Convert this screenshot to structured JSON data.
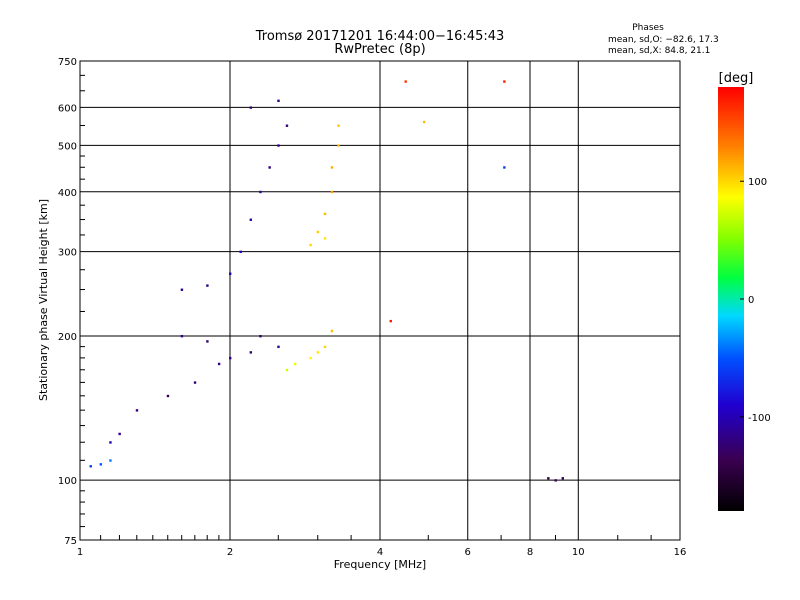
{
  "header": {
    "title_line1": "Tromsø 20171201 16:44:00−16:45:43",
    "title_line2": "RwPretec (8p)"
  },
  "stats": {
    "heading": "Phases",
    "line_o": "mean, sd,O: −82.6, 17.3",
    "line_x": "mean, sd,X:  84.8, 21.1"
  },
  "chart_data": {
    "type": "scatter",
    "xlabel": "Frequency [MHz]",
    "ylabel": "Stationary phase Virtual Height [km]",
    "x_scale": "log",
    "y_scale": "log",
    "xlim": [
      1,
      16
    ],
    "ylim": [
      75,
      750
    ],
    "x_ticks": [
      1,
      2,
      4,
      6,
      8,
      10,
      16
    ],
    "y_ticks": [
      75,
      100,
      200,
      300,
      400,
      500,
      600,
      750
    ],
    "grid": true,
    "colorbar": {
      "label": "[deg]",
      "range": [
        -180,
        180
      ],
      "ticks": [
        100,
        0,
        -100
      ],
      "colormap": "black-violet-blue-cyan-green-yellow-red"
    },
    "clusters": [
      {
        "name": "o-low-edge",
        "points": [
          [
            1.05,
            107,
            -60
          ],
          [
            1.1,
            108,
            -50
          ],
          [
            1.15,
            110,
            -40
          ],
          [
            1.2,
            125,
            -110
          ],
          [
            1.15,
            120,
            -100
          ]
        ]
      },
      {
        "name": "o-lower-trace",
        "points": [
          [
            1.3,
            140,
            -120
          ],
          [
            1.5,
            150,
            -130
          ],
          [
            1.7,
            160,
            -125
          ],
          [
            1.9,
            175,
            -120
          ],
          [
            2.0,
            180,
            -115
          ],
          [
            2.2,
            185,
            -120
          ],
          [
            2.5,
            190,
            -110
          ],
          [
            1.6,
            200,
            -120
          ],
          [
            1.8,
            195,
            -125
          ],
          [
            2.3,
            200,
            -130
          ]
        ]
      },
      {
        "name": "x-lower-trace",
        "points": [
          [
            2.7,
            175,
            80
          ],
          [
            2.9,
            180,
            90
          ],
          [
            3.1,
            190,
            100
          ],
          [
            3.2,
            205,
            110
          ],
          [
            2.6,
            170,
            70
          ],
          [
            3.0,
            185,
            95
          ]
        ]
      },
      {
        "name": "o-upper-trace",
        "points": [
          [
            1.6,
            250,
            -110
          ],
          [
            1.8,
            255,
            -115
          ],
          [
            2.0,
            270,
            -100
          ],
          [
            2.1,
            300,
            -90
          ],
          [
            2.2,
            350,
            -100
          ],
          [
            2.3,
            400,
            -110
          ],
          [
            2.4,
            450,
            -120
          ],
          [
            2.5,
            500,
            -115
          ],
          [
            2.6,
            550,
            -120
          ],
          [
            2.2,
            600,
            -125
          ],
          [
            2.5,
            620,
            -120
          ]
        ]
      },
      {
        "name": "x-upper-trace",
        "points": [
          [
            2.9,
            310,
            100
          ],
          [
            3.0,
            330,
            105
          ],
          [
            3.1,
            360,
            110
          ],
          [
            3.2,
            400,
            120
          ],
          [
            3.2,
            450,
            115
          ],
          [
            3.3,
            500,
            110
          ],
          [
            3.3,
            550,
            105
          ],
          [
            3.1,
            320,
            95
          ]
        ]
      },
      {
        "name": "high-freq-echoes",
        "points": [
          [
            8.7,
            101,
            -140
          ],
          [
            9.0,
            100,
            -135
          ],
          [
            9.3,
            101,
            -130
          ],
          [
            4.5,
            680,
            160
          ],
          [
            7.1,
            680,
            170
          ],
          [
            4.9,
            560,
            110
          ],
          [
            7.1,
            450,
            -60
          ],
          [
            4.2,
            215,
            170
          ]
        ]
      }
    ]
  }
}
